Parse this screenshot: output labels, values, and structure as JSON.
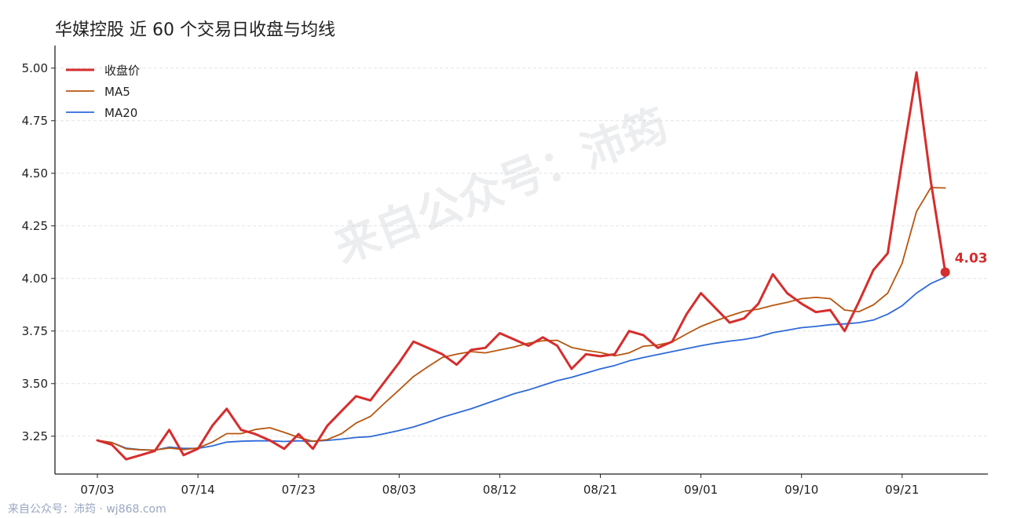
{
  "title": "华媒控股 近 60 个交易日收盘与均线",
  "watermark": "来自公众号：沛筠",
  "footer": "来自公众号：沛筠 · wj868.com",
  "chart_data": {
    "type": "line",
    "title": "华媒控股 近 60 个交易日收盘与均线",
    "xlabel": "",
    "ylabel": "",
    "ylim": [
      3.07,
      5.1
    ],
    "yticks": [
      3.25,
      3.5,
      3.75,
      4.0,
      4.25,
      4.5,
      4.75,
      5.0
    ],
    "x_tick_labels": [
      {
        "index": 0,
        "label": "07/03"
      },
      {
        "index": 7,
        "label": "07/14"
      },
      {
        "index": 14,
        "label": "07/23"
      },
      {
        "index": 21,
        "label": "08/03"
      },
      {
        "index": 28,
        "label": "08/12"
      },
      {
        "index": 35,
        "label": "08/21"
      },
      {
        "index": 42,
        "label": "09/01"
      },
      {
        "index": 49,
        "label": "09/10"
      },
      {
        "index": 56,
        "label": "09/21"
      }
    ],
    "n_points": 60,
    "grid": "horizontal",
    "legend_position": "top-left",
    "series": [
      {
        "name": "收盘价",
        "color": "#d62d2d",
        "values": [
          3.23,
          3.21,
          3.14,
          3.16,
          3.18,
          3.28,
          3.16,
          3.19,
          3.3,
          3.38,
          3.28,
          3.26,
          3.23,
          3.19,
          3.26,
          3.19,
          3.3,
          3.37,
          3.44,
          3.42,
          3.51,
          3.6,
          3.7,
          3.67,
          3.64,
          3.59,
          3.66,
          3.67,
          3.74,
          3.71,
          3.68,
          3.72,
          3.68,
          3.57,
          3.64,
          3.63,
          3.64,
          3.75,
          3.73,
          3.67,
          3.7,
          3.83,
          3.93,
          3.86,
          3.79,
          3.81,
          3.88,
          4.02,
          3.93,
          3.88,
          3.84,
          3.85,
          3.75,
          3.89,
          4.04,
          4.12,
          4.56,
          4.98,
          4.46,
          4.03
        ]
      },
      {
        "name": "MA5",
        "color": "#b8560f",
        "values": [
          3.23,
          3.22,
          3.19,
          3.185,
          3.184,
          3.194,
          3.186,
          3.194,
          3.222,
          3.262,
          3.262,
          3.282,
          3.29,
          3.268,
          3.244,
          3.226,
          3.234,
          3.262,
          3.312,
          3.344,
          3.408,
          3.47,
          3.534,
          3.58,
          3.624,
          3.64,
          3.652,
          3.646,
          3.66,
          3.674,
          3.692,
          3.704,
          3.706,
          3.672,
          3.658,
          3.648,
          3.632,
          3.646,
          3.678,
          3.684,
          3.698,
          3.736,
          3.772,
          3.798,
          3.822,
          3.844,
          3.854,
          3.872,
          3.886,
          3.904,
          3.91,
          3.904,
          3.85,
          3.842,
          3.874,
          3.93,
          4.072,
          4.318,
          4.432,
          4.43
        ]
      },
      {
        "name": "MA20",
        "color": "#2f6ad8",
        "values": [
          3.23,
          3.22,
          3.193,
          3.186,
          3.184,
          3.198,
          3.192,
          3.192,
          3.204,
          3.222,
          3.226,
          3.228,
          3.228,
          3.225,
          3.228,
          3.226,
          3.23,
          3.236,
          3.244,
          3.248,
          3.262,
          3.277,
          3.294,
          3.316,
          3.34,
          3.36,
          3.38,
          3.404,
          3.428,
          3.452,
          3.47,
          3.492,
          3.514,
          3.53,
          3.55,
          3.57,
          3.586,
          3.608,
          3.624,
          3.638,
          3.652,
          3.666,
          3.68,
          3.692,
          3.702,
          3.71,
          3.722,
          3.742,
          3.754,
          3.766,
          3.772,
          3.78,
          3.784,
          3.79,
          3.802,
          3.83,
          3.87,
          3.93,
          3.976,
          4.006
        ]
      }
    ],
    "last_point_label": "4.03",
    "last_point_color": "#d62d2d"
  }
}
